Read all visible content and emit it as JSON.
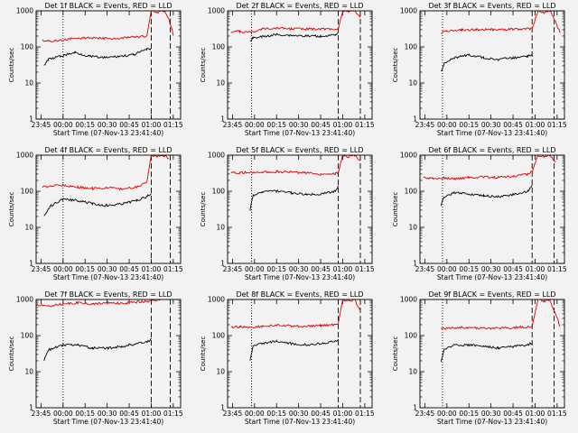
{
  "colors": {
    "background": "#f2f2f2",
    "axis": "#000000",
    "events": "#000000",
    "lld": "#dd0000"
  },
  "chart_data": [
    {
      "type": "line",
      "title": "Det 1f BLACK = Events, RED = LLD",
      "xlabel": "Start Time (07-Nov-13 23:41:40)",
      "ylabel": "Counts/sec",
      "x_tick_labels": [
        "23:45",
        "00:00",
        "00:15",
        "00:30",
        "00:45",
        "01:00",
        "01:15"
      ],
      "y_tick_labels": [
        "1",
        "10",
        "100",
        "1000"
      ],
      "xlim": [
        "23:41:40",
        "01:20:00"
      ],
      "ylim": [
        1,
        1000
      ],
      "yscale": "log",
      "grid": false,
      "legend": "none",
      "dotted_line_x": "00:00",
      "dashed_lines_x": [
        "01:00",
        "01:13"
      ],
      "series": [
        {
          "color": "#dd0000",
          "x": [
            "23:46",
            "23:55",
            "00:05",
            "00:15",
            "00:25",
            "00:35",
            "00:45",
            "00:57",
            "01:00",
            "01:04",
            "01:09",
            "01:12",
            "01:15"
          ],
          "values": [
            150,
            145,
            165,
            180,
            175,
            170,
            180,
            200,
            1000,
            900,
            1000,
            600,
            220
          ]
        },
        {
          "color": "#000000",
          "x": [
            "23:47",
            "23:50",
            "23:58",
            "00:08",
            "00:18",
            "00:28",
            "00:38",
            "00:48",
            "00:57",
            "01:00"
          ],
          "values": [
            30,
            45,
            55,
            70,
            55,
            50,
            55,
            60,
            85,
            90
          ]
        }
      ]
    },
    {
      "type": "line",
      "title": "Det 2f BLACK = Events, RED = LLD",
      "xlabel": "Start Time (07-Nov-13 23:41:40)",
      "ylabel": "Counts/sec",
      "x_tick_labels": [
        "23:45",
        "00:00",
        "00:15",
        "00:30",
        "00:45",
        "01:00",
        "01:15"
      ],
      "y_tick_labels": [
        "1",
        "10",
        "100",
        "1000"
      ],
      "xlim": [
        "23:41:40",
        "01:20:00"
      ],
      "ylim": [
        1,
        1000
      ],
      "yscale": "log",
      "grid": false,
      "legend": "none",
      "dotted_line_x": "23:58",
      "dashed_lines_x": [
        "00:57",
        "01:12"
      ],
      "series": [
        {
          "color": "#dd0000",
          "x": [
            "23:44",
            "23:50",
            "23:58",
            "00:05",
            "00:15",
            "00:25",
            "00:35",
            "00:45",
            "00:55",
            "00:57",
            "01:00",
            "01:04",
            "01:08",
            "01:12"
          ],
          "values": [
            270,
            265,
            250,
            320,
            330,
            320,
            310,
            320,
            300,
            330,
            1000,
            900,
            1000,
            700
          ]
        },
        {
          "color": "#000000",
          "x": [
            "23:57",
            "23:59",
            "00:05",
            "00:15",
            "00:25",
            "00:35",
            "00:45",
            "00:55",
            "00:57"
          ],
          "values": [
            140,
            180,
            190,
            220,
            210,
            200,
            200,
            210,
            230
          ]
        }
      ]
    },
    {
      "type": "line",
      "title": "Det 3f BLACK = Events, RED = LLD",
      "xlabel": "Start Time (07-Nov-13 23:41:40)",
      "ylabel": "Counts/sec",
      "x_tick_labels": [
        "23:45",
        "00:00",
        "00:15",
        "00:30",
        "00:45",
        "01:00",
        "01:15"
      ],
      "y_tick_labels": [
        "1",
        "10",
        "100",
        "1000"
      ],
      "xlim": [
        "23:41:40",
        "01:20:00"
      ],
      "ylim": [
        1,
        1000
      ],
      "yscale": "log",
      "grid": false,
      "legend": "none",
      "dotted_line_x": "23:57",
      "dashed_lines_x": [
        "00:58",
        "01:13"
      ],
      "series": [
        {
          "color": "#dd0000",
          "x": [
            "23:56",
            "00:00",
            "00:10",
            "00:20",
            "00:30",
            "00:40",
            "00:50",
            "00:58",
            "01:02",
            "01:06",
            "01:10",
            "01:14",
            "01:17"
          ],
          "values": [
            250,
            270,
            290,
            300,
            300,
            305,
            310,
            320,
            1000,
            900,
            1000,
            500,
            250
          ]
        },
        {
          "color": "#000000",
          "x": [
            "23:56",
            "23:58",
            "00:05",
            "00:15",
            "00:25",
            "00:35",
            "00:45",
            "00:55",
            "00:58"
          ],
          "values": [
            20,
            35,
            50,
            60,
            50,
            45,
            50,
            55,
            60
          ]
        }
      ]
    },
    {
      "type": "line",
      "title": "Det 4f BLACK = Events, RED = LLD",
      "xlabel": "Start Time (07-Nov-13 23:41:40)",
      "ylabel": "Counts/sec",
      "x_tick_labels": [
        "23:45",
        "00:00",
        "00:15",
        "00:30",
        "00:45",
        "01:00",
        "01:15"
      ],
      "y_tick_labels": [
        "1",
        "10",
        "100",
        "1000"
      ],
      "xlim": [
        "23:41:40",
        "01:20:00"
      ],
      "ylim": [
        1,
        1000
      ],
      "yscale": "log",
      "grid": false,
      "legend": "none",
      "dotted_line_x": "00:00",
      "dashed_lines_x": [
        "01:00",
        "01:13"
      ],
      "series": [
        {
          "color": "#dd0000",
          "x": [
            "23:46",
            "23:52",
            "00:00",
            "00:10",
            "00:20",
            "00:30",
            "00:40",
            "00:50",
            "00:57",
            "01:00",
            "01:04",
            "01:08",
            "01:12"
          ],
          "values": [
            130,
            140,
            150,
            130,
            120,
            125,
            115,
            130,
            180,
            1000,
            900,
            1000,
            800
          ]
        },
        {
          "color": "#000000",
          "x": [
            "23:47",
            "23:52",
            "00:00",
            "00:10",
            "00:20",
            "00:30",
            "00:40",
            "00:50",
            "00:57",
            "01:00"
          ],
          "values": [
            22,
            40,
            60,
            55,
            45,
            40,
            45,
            55,
            70,
            90
          ]
        }
      ]
    },
    {
      "type": "line",
      "title": "Det 5f BLACK = Events, RED = LLD",
      "xlabel": "Start Time (07-Nov-13 23:41:40)",
      "ylabel": "Counts/sec",
      "x_tick_labels": [
        "23:45",
        "00:00",
        "00:15",
        "00:30",
        "00:45",
        "01:00",
        "01:15"
      ],
      "y_tick_labels": [
        "1",
        "10",
        "100",
        "1000"
      ],
      "xlim": [
        "23:41:40",
        "01:20:00"
      ],
      "ylim": [
        1,
        1000
      ],
      "yscale": "log",
      "grid": false,
      "legend": "none",
      "dotted_line_x": "23:58",
      "dashed_lines_x": [
        "00:57",
        "01:12"
      ],
      "series": [
        {
          "color": "#dd0000",
          "x": [
            "23:44",
            "23:50",
            "23:58",
            "00:05",
            "00:15",
            "00:25",
            "00:35",
            "00:45",
            "00:55",
            "00:57",
            "01:00",
            "01:04",
            "01:08",
            "01:12"
          ],
          "values": [
            320,
            330,
            330,
            340,
            350,
            340,
            320,
            300,
            310,
            330,
            1000,
            900,
            1000,
            700
          ]
        },
        {
          "color": "#000000",
          "x": [
            "23:57",
            "23:59",
            "00:05",
            "00:15",
            "00:25",
            "00:35",
            "00:45",
            "00:55",
            "00:57"
          ],
          "values": [
            30,
            75,
            95,
            100,
            90,
            80,
            85,
            100,
            150
          ]
        }
      ]
    },
    {
      "type": "line",
      "title": "Det 6f BLACK = Events, RED = LLD",
      "xlabel": "Start Time (07-Nov-13 23:41:40)",
      "ylabel": "Counts/sec",
      "x_tick_labels": [
        "23:45",
        "00:00",
        "00:15",
        "00:30",
        "00:45",
        "01:00",
        "01:15"
      ],
      "y_tick_labels": [
        "1",
        "10",
        "100",
        "1000"
      ],
      "xlim": [
        "23:41:40",
        "01:20:00"
      ],
      "ylim": [
        1,
        1000
      ],
      "yscale": "log",
      "grid": false,
      "legend": "none",
      "dotted_line_x": "23:57",
      "dashed_lines_x": [
        "00:58",
        "01:13"
      ],
      "series": [
        {
          "color": "#dd0000",
          "x": [
            "23:44",
            "23:50",
            "23:58",
            "00:05",
            "00:15",
            "00:25",
            "00:35",
            "00:45",
            "00:55",
            "00:58",
            "01:02",
            "01:06",
            "01:10",
            "01:14"
          ],
          "values": [
            240,
            230,
            230,
            220,
            240,
            250,
            240,
            260,
            300,
            350,
            1000,
            900,
            1000,
            600
          ]
        },
        {
          "color": "#000000",
          "x": [
            "23:56",
            "23:58",
            "00:05",
            "00:15",
            "00:25",
            "00:35",
            "00:45",
            "00:55",
            "00:58"
          ],
          "values": [
            40,
            70,
            90,
            85,
            75,
            70,
            80,
            100,
            150
          ]
        }
      ]
    },
    {
      "type": "line",
      "title": "Det 7f BLACK = Events, RED = LLD",
      "xlabel": "Start Time (07-Nov-13 23:41:40)",
      "ylabel": "Counts/sec",
      "x_tick_labels": [
        "23:45",
        "00:00",
        "00:15",
        "00:30",
        "00:45",
        "01:00",
        "01:15"
      ],
      "y_tick_labels": [
        "1",
        "10",
        "100",
        "1000"
      ],
      "xlim": [
        "23:41:40",
        "01:20:00"
      ],
      "ylim": [
        1,
        1000
      ],
      "yscale": "log",
      "grid": false,
      "legend": "none",
      "dotted_line_x": "00:00",
      "dashed_lines_x": [
        "01:00",
        "01:13"
      ],
      "series": [
        {
          "color": "#dd0000",
          "x": [
            "23:42",
            "23:50",
            "00:00",
            "00:10",
            "00:20",
            "00:30",
            "00:40",
            "00:50",
            "00:58",
            "01:00",
            "01:04",
            "01:08"
          ],
          "values": [
            700,
            650,
            750,
            800,
            750,
            800,
            780,
            850,
            900,
            1000,
            950,
            1000
          ]
        },
        {
          "color": "#000000",
          "x": [
            "23:47",
            "23:50",
            "00:00",
            "00:10",
            "00:20",
            "00:30",
            "00:40",
            "00:50",
            "00:58",
            "01:00"
          ],
          "values": [
            20,
            40,
            55,
            55,
            45,
            45,
            50,
            60,
            70,
            80
          ]
        }
      ]
    },
    {
      "type": "line",
      "title": "Det 8f BLACK = Events, RED = LLD",
      "xlabel": "Start Time (07-Nov-13 23:41:40)",
      "ylabel": "Counts/sec",
      "x_tick_labels": [
        "23:45",
        "00:00",
        "00:15",
        "00:30",
        "00:45",
        "01:00",
        "01:15"
      ],
      "y_tick_labels": [
        "1",
        "10",
        "100",
        "1000"
      ],
      "xlim": [
        "23:41:40",
        "01:20:00"
      ],
      "ylim": [
        1,
        1000
      ],
      "yscale": "log",
      "grid": false,
      "legend": "none",
      "dotted_line_x": "23:58",
      "dashed_lines_x": [
        "00:57",
        "01:12"
      ],
      "series": [
        {
          "color": "#dd0000",
          "x": [
            "23:44",
            "23:50",
            "23:58",
            "00:05",
            "00:15",
            "00:25",
            "00:35",
            "00:45",
            "00:55",
            "00:57",
            "01:00",
            "01:04",
            "01:08",
            "01:12"
          ],
          "values": [
            170,
            175,
            170,
            180,
            190,
            185,
            180,
            190,
            200,
            220,
            1000,
            900,
            1000,
            500
          ]
        },
        {
          "color": "#000000",
          "x": [
            "23:57",
            "23:59",
            "00:05",
            "00:15",
            "00:25",
            "00:35",
            "00:45",
            "00:55",
            "00:57"
          ],
          "values": [
            20,
            50,
            60,
            70,
            60,
            55,
            60,
            70,
            80
          ]
        }
      ]
    },
    {
      "type": "line",
      "title": "Det 9f BLACK = Events, RED = LLD",
      "xlabel": "Start Time (07-Nov-13 23:41:40)",
      "ylabel": "Counts/sec",
      "x_tick_labels": [
        "23:45",
        "00:00",
        "00:15",
        "00:30",
        "00:45",
        "01:00",
        "01:15"
      ],
      "y_tick_labels": [
        "1",
        "10",
        "100",
        "1000"
      ],
      "xlim": [
        "23:41:40",
        "01:20:00"
      ],
      "ylim": [
        1,
        1000
      ],
      "yscale": "log",
      "grid": false,
      "legend": "none",
      "dotted_line_x": "23:57",
      "dashed_lines_x": [
        "00:58",
        "01:13"
      ],
      "series": [
        {
          "color": "#dd0000",
          "x": [
            "23:56",
            "00:00",
            "00:10",
            "00:20",
            "00:30",
            "00:40",
            "00:50",
            "00:58",
            "01:02",
            "01:06",
            "01:10",
            "01:14",
            "01:17"
          ],
          "values": [
            150,
            160,
            170,
            160,
            160,
            165,
            170,
            180,
            1000,
            900,
            1000,
            400,
            180
          ]
        },
        {
          "color": "#000000",
          "x": [
            "23:56",
            "23:58",
            "00:05",
            "00:15",
            "00:25",
            "00:35",
            "00:45",
            "00:55",
            "00:58"
          ],
          "values": [
            18,
            40,
            55,
            55,
            50,
            45,
            50,
            55,
            65
          ]
        }
      ]
    }
  ]
}
